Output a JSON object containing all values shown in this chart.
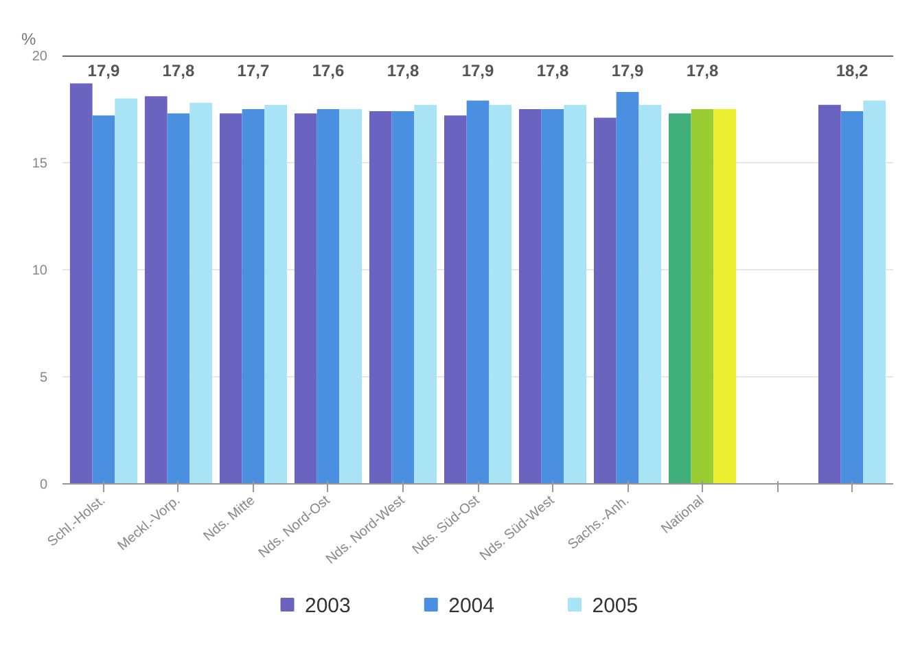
{
  "chart_data": {
    "type": "bar",
    "ylabel": "%",
    "categories": [
      "Schl.-Holst.",
      "Meckl.-Vorp.",
      "Nds. Mitte",
      "Nds. Nord-Ost",
      "Nds. Nord-West",
      "Nds. Süd-Ost",
      "Nds. Süd-West",
      "Sachs.-Anh.",
      "National",
      null,
      null
    ],
    "series": [
      {
        "name": "2003",
        "color": "#6a63c0",
        "colors": [
          "#6a63c0",
          "#6a63c0",
          "#6a63c0",
          "#6a63c0",
          "#6a63c0",
          "#6a63c0",
          "#6a63c0",
          "#6a63c0",
          "#3fae7a",
          "#6a63c0",
          "#6a63c0"
        ],
        "values": [
          18.7,
          18.1,
          17.3,
          17.3,
          17.4,
          17.2,
          17.5,
          17.1,
          17.3,
          null,
          17.7
        ]
      },
      {
        "name": "2004",
        "color": "#4a8fe0",
        "colors": [
          "#4a8fe0",
          "#4a8fe0",
          "#4a8fe0",
          "#4a8fe0",
          "#4a8fe0",
          "#4a8fe0",
          "#4a8fe0",
          "#4a8fe0",
          "#9acd32",
          "#4a8fe0",
          "#4a8fe0"
        ],
        "values": [
          17.2,
          17.3,
          17.5,
          17.5,
          17.4,
          17.9,
          17.5,
          18.3,
          17.5,
          null,
          17.4
        ]
      },
      {
        "name": "2005",
        "color": "#a8e4f5",
        "colors": [
          "#a8e4f5",
          "#a8e4f5",
          "#a8e4f5",
          "#a8e4f5",
          "#a8e4f5",
          "#a8e4f5",
          "#a8e4f5",
          "#a8e4f5",
          "#eeee30",
          "#a8e4f5",
          "#a8e4f5"
        ],
        "values": [
          18.0,
          17.8,
          17.7,
          17.5,
          17.7,
          17.7,
          17.7,
          17.7,
          17.5,
          null,
          17.9
        ]
      }
    ],
    "annotations": [
      "17,9",
      "17,8",
      "17,7",
      "17,6",
      "17,8",
      "17,9",
      "17,8",
      "17,9",
      "17,8",
      "18,2"
    ],
    "ylim": [
      0,
      20
    ],
    "yticks": [
      0,
      5,
      10,
      15,
      20
    ],
    "grid": "y",
    "legend": "bottom",
    "ref_lines": [
      {
        "axis": "y",
        "value": 20,
        "color": "#333333"
      }
    ]
  }
}
